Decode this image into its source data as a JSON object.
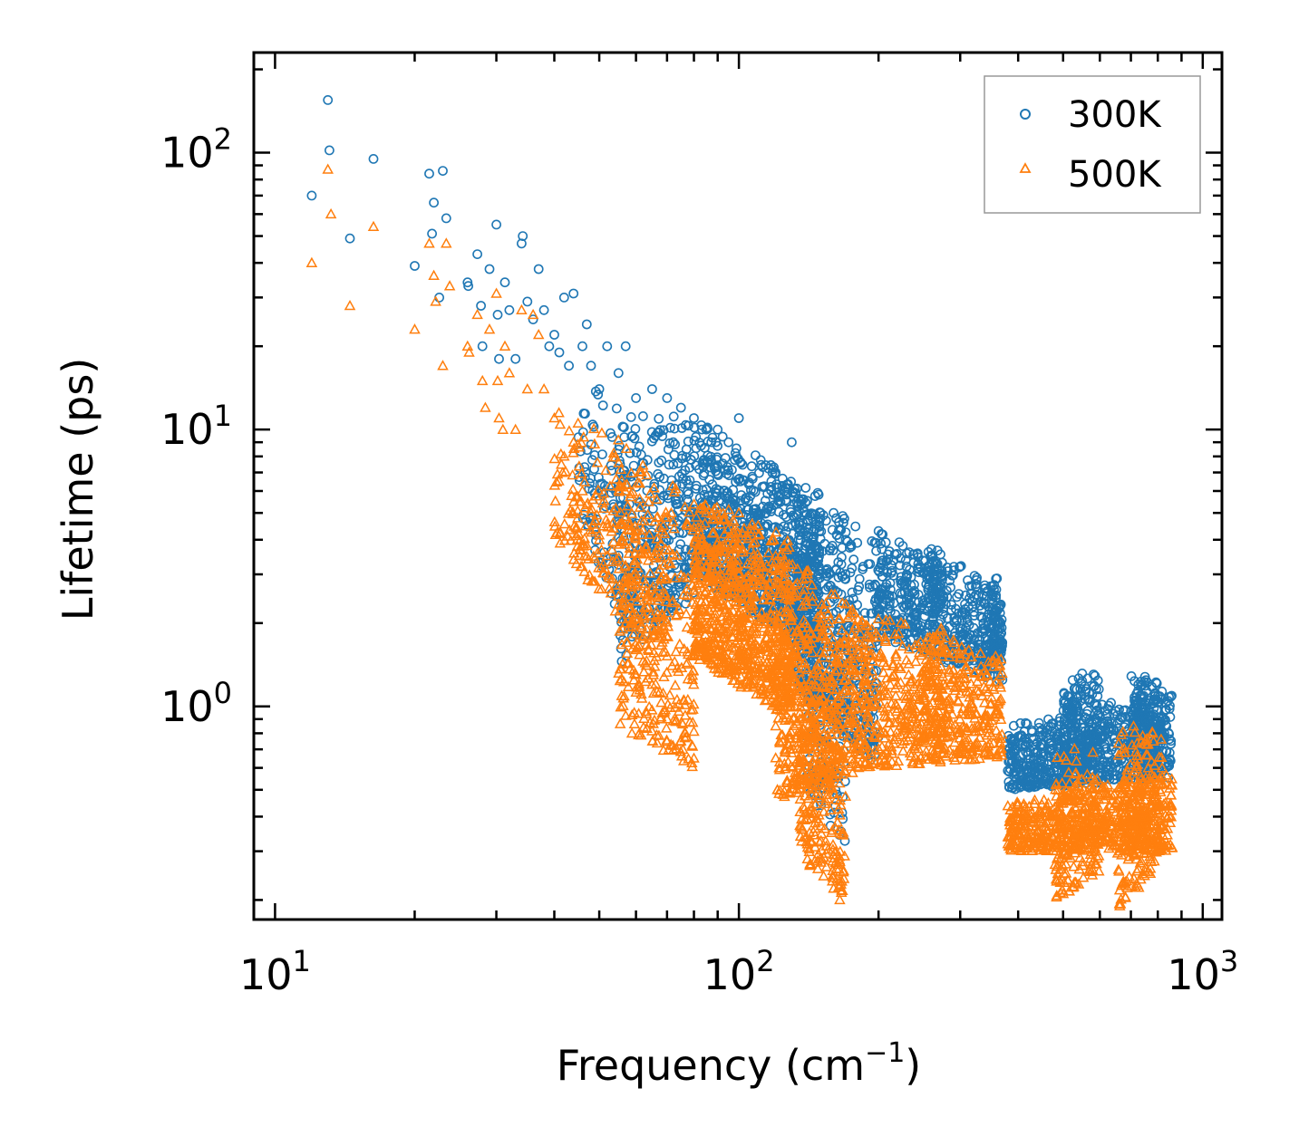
{
  "chart_data": {
    "type": "scatter",
    "title": "",
    "xlabel": "Frequency (cm",
    "xlabel_sup": "−1",
    "xlabel_close": ")",
    "ylabel": "Lifetime (ps)",
    "xscale": "log",
    "yscale": "log",
    "xlim": [
      9,
      1100
    ],
    "ylim": [
      0.17,
      230
    ],
    "x_ticks": [
      {
        "value": 10,
        "base": "10",
        "exp": "1"
      },
      {
        "value": 100,
        "base": "10",
        "exp": "2"
      },
      {
        "value": 1000,
        "base": "10",
        "exp": "3"
      }
    ],
    "y_ticks": [
      {
        "value": 1,
        "base": "10",
        "exp": "0"
      },
      {
        "value": 10,
        "base": "10",
        "exp": "1"
      },
      {
        "value": 100,
        "base": "10",
        "exp": "2"
      }
    ],
    "legend_position": "top-right",
    "grid": false,
    "series": [
      {
        "name": "300K",
        "marker": "circle",
        "color": "#1f77b4",
        "points": [
          [
            12,
            70
          ],
          [
            13,
            155
          ],
          [
            13.1,
            102
          ],
          [
            14.5,
            49
          ],
          [
            16.3,
            95
          ],
          [
            20,
            39
          ],
          [
            21.5,
            84
          ],
          [
            21.8,
            51
          ],
          [
            22,
            66
          ],
          [
            22.6,
            30
          ],
          [
            23,
            86
          ],
          [
            23.4,
            58
          ],
          [
            26,
            34
          ],
          [
            26.1,
            33
          ],
          [
            27.3,
            43
          ],
          [
            27.8,
            28
          ],
          [
            28,
            20
          ],
          [
            29,
            38
          ],
          [
            30,
            55
          ],
          [
            30.2,
            26
          ],
          [
            30.4,
            18
          ],
          [
            31.3,
            34
          ],
          [
            32,
            27
          ],
          [
            33,
            18
          ],
          [
            34,
            47
          ],
          [
            34.2,
            50
          ],
          [
            35,
            29
          ],
          [
            36,
            25
          ],
          [
            37,
            38
          ],
          [
            38,
            27
          ],
          [
            39,
            20
          ],
          [
            40,
            22
          ],
          [
            41,
            19
          ],
          [
            42,
            30
          ],
          [
            43,
            17
          ],
          [
            44,
            31
          ],
          [
            46,
            20
          ],
          [
            47,
            24
          ],
          [
            48,
            17
          ],
          [
            50,
            14
          ],
          [
            52,
            20
          ],
          [
            55,
            16
          ],
          [
            57,
            20
          ],
          [
            60,
            13
          ],
          [
            65,
            14
          ],
          [
            70,
            13
          ],
          [
            75,
            12
          ],
          [
            80,
            11
          ],
          [
            85,
            10
          ],
          [
            90,
            10
          ],
          [
            95,
            9
          ],
          [
            100,
            11
          ],
          [
            120,
            7
          ],
          [
            130,
            9
          ],
          [
            150,
            5
          ],
          [
            160,
            5
          ],
          [
            170,
            4
          ],
          [
            180,
            3.9
          ],
          [
            200,
            4.3
          ],
          [
            230,
            3
          ],
          [
            260,
            3.7
          ],
          [
            300,
            3.2
          ],
          [
            360,
            2.9
          ]
        ],
        "clusters": [
          {
            "x0": 45,
            "x1": 60,
            "yTop0": 16,
            "yTop1": 11,
            "yBot0": 5,
            "yBot1": 1.5,
            "n": 120
          },
          {
            "x0": 55,
            "x1": 80,
            "yTop0": 12,
            "yTop1": 11,
            "yBot0": 1.4,
            "yBot1": 2.5,
            "n": 320
          },
          {
            "x0": 80,
            "x1": 150,
            "yTop0": 11,
            "yTop1": 6,
            "yBot0": 3,
            "yBot1": 1.5,
            "n": 900
          },
          {
            "x0": 130,
            "x1": 200,
            "yTop0": 7,
            "yTop1": 4,
            "yBot0": 1.2,
            "yBot1": 0.6,
            "n": 500
          },
          {
            "x0": 140,
            "x1": 170,
            "yTop0": 2,
            "yTop1": 1.5,
            "yBot0": 0.5,
            "yBot1": 0.3,
            "n": 120
          },
          {
            "x0": 200,
            "x1": 370,
            "yTop0": 4.3,
            "yTop1": 2.9,
            "yBot0": 1.8,
            "yBot1": 1.2,
            "n": 500
          },
          {
            "x0": 255,
            "x1": 275,
            "yTop0": 3.7,
            "yTop1": 3.7,
            "yBot0": 2.2,
            "yBot1": 2.2,
            "n": 60
          },
          {
            "x0": 350,
            "x1": 370,
            "yTop0": 2.9,
            "yTop1": 2.5,
            "yBot0": 1.5,
            "yBot1": 1.5,
            "n": 60
          },
          {
            "x0": 380,
            "x1": 860,
            "yTop0": 0.85,
            "yTop1": 1.2,
            "yBot0": 0.5,
            "yBot1": 0.55,
            "n": 700
          },
          {
            "x0": 500,
            "x1": 600,
            "yTop0": 1.35,
            "yTop1": 1.35,
            "yBot0": 0.6,
            "yBot1": 0.6,
            "n": 150
          },
          {
            "x0": 700,
            "x1": 800,
            "yTop0": 1.35,
            "yTop1": 1.3,
            "yBot0": 0.6,
            "yBot1": 0.55,
            "n": 150
          }
        ]
      },
      {
        "name": "500K",
        "marker": "triangle",
        "color": "#ff7f0e",
        "points": [
          [
            12,
            40
          ],
          [
            13,
            87
          ],
          [
            13.2,
            60
          ],
          [
            14.5,
            28
          ],
          [
            16.3,
            54
          ],
          [
            20,
            23
          ],
          [
            21.5,
            47
          ],
          [
            22,
            36
          ],
          [
            22.2,
            29
          ],
          [
            23,
            17
          ],
          [
            23.4,
            47
          ],
          [
            23.8,
            33
          ],
          [
            26,
            20
          ],
          [
            26.2,
            19
          ],
          [
            27.3,
            26
          ],
          [
            28,
            15
          ],
          [
            28.4,
            12
          ],
          [
            29,
            23
          ],
          [
            30,
            31
          ],
          [
            30.2,
            15
          ],
          [
            30.4,
            11
          ],
          [
            31,
            10
          ],
          [
            31.3,
            20
          ],
          [
            32,
            16
          ],
          [
            33,
            10
          ],
          [
            34,
            27
          ],
          [
            35,
            14
          ],
          [
            36,
            26
          ],
          [
            37,
            22
          ],
          [
            38,
            14
          ],
          [
            40,
            11
          ],
          [
            42,
            8
          ],
          [
            44,
            9
          ],
          [
            46,
            6
          ],
          [
            48,
            5
          ],
          [
            50,
            4
          ],
          [
            52,
            3.5
          ],
          [
            55,
            2.5
          ],
          [
            57,
            2.0
          ],
          [
            60,
            1.6
          ],
          [
            65,
            1.2
          ],
          [
            70,
            0.9
          ],
          [
            75,
            0.75
          ],
          [
            80,
            0.65
          ],
          [
            100,
            5
          ],
          [
            110,
            4.5
          ],
          [
            120,
            3.5
          ],
          [
            150,
            2
          ],
          [
            160,
            0.22
          ],
          [
            165,
            0.2
          ]
        ],
        "clusters": [
          {
            "x0": 40,
            "x1": 70,
            "yTop0": 13,
            "yTop1": 8,
            "yBot0": 4,
            "yBot1": 1.3,
            "n": 260
          },
          {
            "x0": 55,
            "x1": 80,
            "yTop0": 8,
            "yTop1": 6,
            "yBot0": 0.85,
            "yBot1": 0.6,
            "n": 300
          },
          {
            "x0": 80,
            "x1": 130,
            "yTop0": 6,
            "yTop1": 4,
            "yBot0": 1.5,
            "yBot1": 0.9,
            "n": 800
          },
          {
            "x0": 120,
            "x1": 190,
            "yTop0": 4,
            "yTop1": 2,
            "yBot0": 0.45,
            "yBot1": 0.6,
            "n": 600
          },
          {
            "x0": 135,
            "x1": 170,
            "yTop0": 1.2,
            "yTop1": 0.6,
            "yBot0": 0.28,
            "yBot1": 0.2,
            "n": 180
          },
          {
            "x0": 190,
            "x1": 370,
            "yTop0": 2.2,
            "yTop1": 1.6,
            "yBot0": 0.6,
            "yBot1": 0.65,
            "n": 550
          },
          {
            "x0": 250,
            "x1": 275,
            "yTop0": 1.8,
            "yTop1": 2.1,
            "yBot0": 0.7,
            "yBot1": 0.7,
            "n": 60
          },
          {
            "x0": 380,
            "x1": 860,
            "yTop0": 0.45,
            "yTop1": 0.6,
            "yBot0": 0.3,
            "yBot1": 0.3,
            "n": 650
          },
          {
            "x0": 480,
            "x1": 600,
            "yTop0": 0.7,
            "yTop1": 0.75,
            "yBot0": 0.2,
            "yBot1": 0.25,
            "n": 160
          },
          {
            "x0": 650,
            "x1": 820,
            "yTop0": 0.9,
            "yTop1": 0.85,
            "yBot0": 0.18,
            "yBot1": 0.27,
            "n": 200
          }
        ]
      }
    ]
  }
}
